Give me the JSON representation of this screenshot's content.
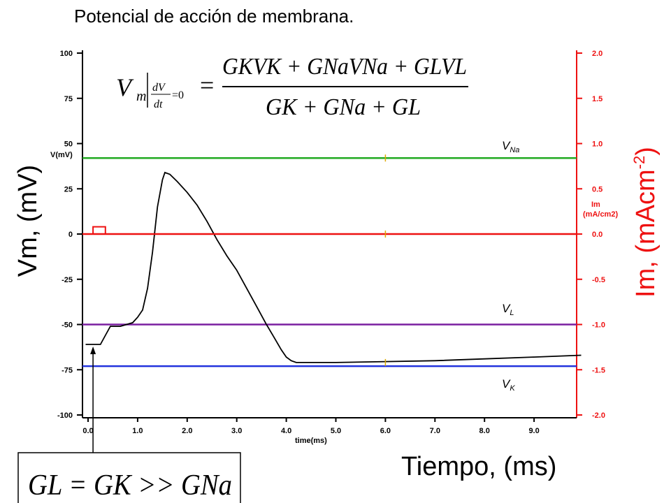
{
  "title": "Potencial de acción de membrana.",
  "chart_data": {
    "type": "line",
    "xlabel": "Tiempo, (ms)",
    "xlabel_small": "time(ms)",
    "ylabel_left": "Vm, (mV)",
    "ylabel_left_small": "V(mV)",
    "ylabel_right": "Im, (mAcm",
    "ylabel_right_exp": "-2",
    "ylabel_right_close": ")",
    "ylabel_right_small_1": "Im",
    "ylabel_right_small_2": "(mA/cm2)",
    "xlim": [
      0,
      10
    ],
    "ylim_left": [
      -100,
      100
    ],
    "ylim_right": [
      -2.0,
      2.0
    ],
    "x_ticks": [
      "0.0",
      "1.0",
      "2.0",
      "3.0",
      "4.0",
      "5.0",
      "6.0",
      "7.0",
      "8.0",
      "9.0"
    ],
    "y_left_ticks": [
      "100",
      "75",
      "50",
      "25",
      "0",
      "-25",
      "-50",
      "-75",
      "-100"
    ],
    "y_right_ticks": [
      "2.0",
      "1.5",
      "1.0",
      "0.5",
      "0.0",
      "-0.5",
      "-1.0",
      "-1.5",
      "-2.0"
    ],
    "grid": false,
    "reference_lines": [
      {
        "name": "V_Na",
        "label_main": "V",
        "label_sub": "Na",
        "y": 42,
        "color": "#22aa22"
      },
      {
        "name": "V_L",
        "label_main": "V",
        "label_sub": "L",
        "y": -50,
        "color": "#7a1fa0"
      },
      {
        "name": "V_K",
        "label_main": "V",
        "label_sub": "K",
        "y": -73,
        "color": "#2233dd"
      }
    ],
    "zero_line": {
      "y": 0,
      "color": "#ee1111"
    },
    "series": [
      {
        "color": "#000000",
        "x": [
          -0.05,
          0.25,
          0.35,
          0.45,
          0.65,
          0.9,
          1.0,
          1.1,
          1.2,
          1.3,
          1.4,
          1.5,
          1.55,
          1.65,
          1.8,
          2.0,
          2.2,
          2.4,
          2.6,
          2.8,
          3.0,
          3.2,
          3.4,
          3.6,
          3.75,
          3.9,
          4.0,
          4.1,
          4.2,
          4.5,
          5.0,
          6.0,
          7.0,
          8.0,
          9.0,
          9.95
        ],
        "y": [
          -61,
          -61,
          -56,
          -51,
          -51,
          -49,
          -46,
          -42,
          -30,
          -10,
          15,
          30,
          34,
          33,
          29,
          23,
          16,
          7,
          -3,
          -12,
          -20,
          -30,
          -40,
          -50,
          -57,
          -64,
          -68,
          -70,
          -71,
          -71,
          -71,
          -70.5,
          -70,
          -69,
          -68,
          -67
        ]
      },
      {
        "color": "#ee1111",
        "x": [
          -0.05,
          0.1,
          0.1,
          0.35,
          0.35,
          9.95
        ],
        "y": [
          0,
          0,
          4,
          4,
          0,
          0
        ]
      }
    ],
    "markers": [
      {
        "x": 6.0,
        "y": 42,
        "color": "#ddaa00"
      },
      {
        "x": 6.0,
        "y": 0,
        "color": "#ddaa00"
      },
      {
        "x": 6.0,
        "y": -71,
        "color": "#ddaa00"
      }
    ],
    "stimulus_arrow": {
      "x": 0.1
    },
    "colors": {
      "left_axis": "#000000",
      "right_axis": "#ee1111"
    }
  },
  "equation_main": {
    "lhs": "V",
    "lhs_sub": "m",
    "cond_num": "dV",
    "cond_den": "dt",
    "cond_eq": "=0",
    "equals": "=",
    "numerator": "GKVK + GNaVNa + GLVL",
    "denominator": "GK + GNa + GL"
  },
  "equation_box": "GL = GK >> GNa"
}
